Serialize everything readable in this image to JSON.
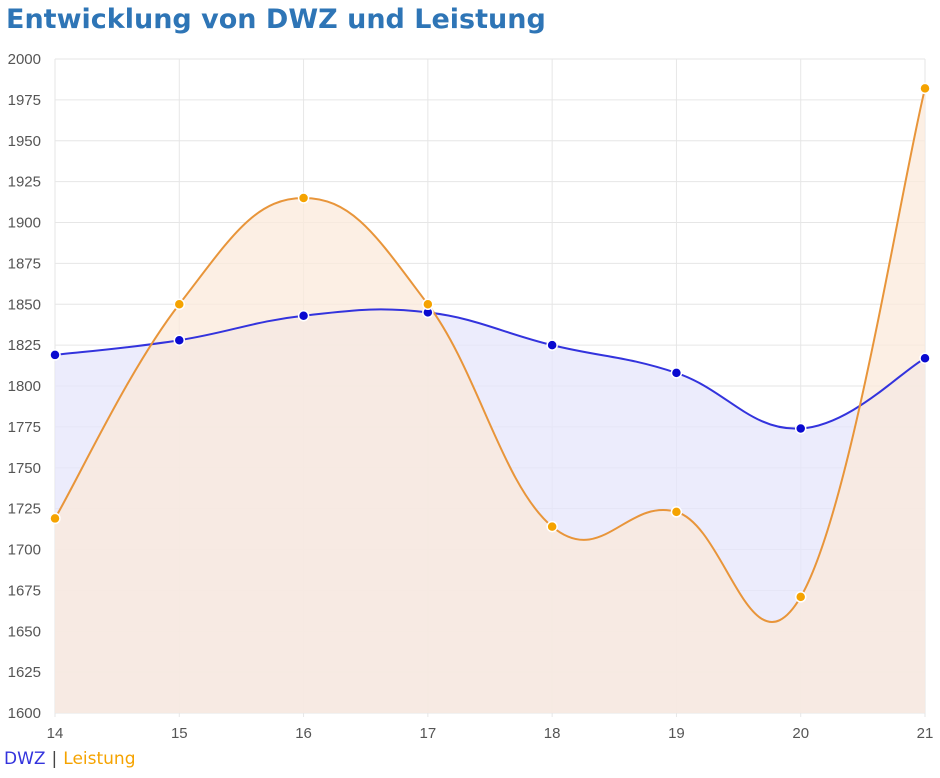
{
  "chart_data": {
    "type": "line",
    "title": "Entwicklung von DWZ und Leistung",
    "xlabel": "",
    "ylabel": "",
    "x": [
      14,
      15,
      16,
      17,
      18,
      19,
      20,
      21
    ],
    "ylim": [
      1600,
      2000
    ],
    "yticks": [
      1600,
      1625,
      1650,
      1675,
      1700,
      1725,
      1750,
      1775,
      1800,
      1825,
      1850,
      1875,
      1900,
      1925,
      1950,
      1975,
      2000
    ],
    "grid": true,
    "legend_position": "bottom-left",
    "legend_separator": "|",
    "series": [
      {
        "name": "DWZ",
        "color": "#3333dd",
        "point_color": "#0a0ad0",
        "fill_color": "#e6e6fb",
        "values": [
          1819,
          1828,
          1843,
          1845,
          1825,
          1808,
          1774,
          1817
        ]
      },
      {
        "name": "Leistung",
        "color": "#e8953a",
        "point_color": "#f5a300",
        "fill_color": "#fbeadb",
        "values": [
          1719,
          1850,
          1915,
          1850,
          1714,
          1723,
          1671,
          1982
        ]
      }
    ]
  }
}
